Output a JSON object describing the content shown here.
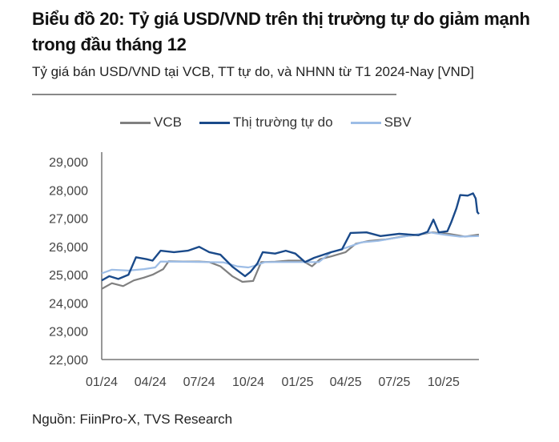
{
  "header": {
    "title": "Biểu đồ 20: Tỷ giá USD/VND trên thị trường tự do giảm mạnh trong đầu tháng 12",
    "subtitle": "Tỷ giá bán USD/VND tại VCB, TT tự do, và NHNN từ T1 2024-Nay [VND]"
  },
  "footer": {
    "source": "Nguồn: FiinPro-X, TVS Research"
  },
  "chart_data": {
    "type": "line",
    "title": "",
    "xlabel": "",
    "ylabel": "",
    "ylim": [
      22000,
      29000
    ],
    "xlim": [
      "2024-01-01",
      "2025-12-06"
    ],
    "y_ticks": [
      "22,000",
      "23,000",
      "24,000",
      "25,000",
      "26,000",
      "27,000",
      "28,000",
      "29,000"
    ],
    "y_tick_values": [
      22000,
      23000,
      24000,
      25000,
      26000,
      27000,
      28000,
      29000
    ],
    "x_ticks": [
      "01/24",
      "04/24",
      "07/24",
      "10/24",
      "01/25",
      "04/25",
      "07/25",
      "10/25"
    ],
    "x_tick_dates": [
      "2024-01-01",
      "2024-04-01",
      "2024-07-01",
      "2024-10-01",
      "2025-01-01",
      "2025-04-01",
      "2025-07-01",
      "2025-10-01"
    ],
    "grid": false,
    "legend_position": "top",
    "series": [
      {
        "name": "VCB",
        "color": "#808080",
        "points": [
          [
            "2024-01-01",
            24500
          ],
          [
            "2024-01-20",
            24700
          ],
          [
            "2024-02-10",
            24600
          ],
          [
            "2024-03-01",
            24800
          ],
          [
            "2024-03-20",
            24900
          ],
          [
            "2024-04-05",
            25000
          ],
          [
            "2024-04-25",
            25200
          ],
          [
            "2024-05-05",
            25480
          ],
          [
            "2024-06-01",
            25470
          ],
          [
            "2024-07-01",
            25470
          ],
          [
            "2024-07-20",
            25450
          ],
          [
            "2024-08-10",
            25300
          ],
          [
            "2024-09-01",
            24950
          ],
          [
            "2024-09-20",
            24750
          ],
          [
            "2024-10-10",
            24780
          ],
          [
            "2024-10-25",
            25450
          ],
          [
            "2024-11-20",
            25460
          ],
          [
            "2024-12-15",
            25500
          ],
          [
            "2025-01-10",
            25500
          ],
          [
            "2025-01-28",
            25300
          ],
          [
            "2025-02-12",
            25550
          ],
          [
            "2025-03-05",
            25650
          ],
          [
            "2025-04-01",
            25800
          ],
          [
            "2025-04-20",
            26100
          ],
          [
            "2025-05-15",
            26200
          ],
          [
            "2025-06-15",
            26250
          ],
          [
            "2025-07-15",
            26350
          ],
          [
            "2025-08-15",
            26420
          ],
          [
            "2025-09-10",
            26500
          ],
          [
            "2025-10-10",
            26450
          ],
          [
            "2025-11-10",
            26350
          ],
          [
            "2025-12-06",
            26420
          ]
        ]
      },
      {
        "name": "Thị trường tự do",
        "color": "#1a4a8a",
        "points": [
          [
            "2024-01-01",
            24800
          ],
          [
            "2024-01-15",
            24950
          ],
          [
            "2024-02-01",
            24850
          ],
          [
            "2024-02-20",
            25000
          ],
          [
            "2024-03-05",
            25620
          ],
          [
            "2024-03-25",
            25550
          ],
          [
            "2024-04-05",
            25500
          ],
          [
            "2024-04-20",
            25850
          ],
          [
            "2024-05-15",
            25800
          ],
          [
            "2024-06-10",
            25850
          ],
          [
            "2024-07-01",
            25990
          ],
          [
            "2024-07-20",
            25800
          ],
          [
            "2024-08-10",
            25710
          ],
          [
            "2024-09-01",
            25290
          ],
          [
            "2024-09-25",
            24950
          ],
          [
            "2024-10-05",
            25100
          ],
          [
            "2024-10-18",
            25400
          ],
          [
            "2024-10-28",
            25800
          ],
          [
            "2024-11-20",
            25750
          ],
          [
            "2024-12-10",
            25850
          ],
          [
            "2024-12-28",
            25750
          ],
          [
            "2025-01-15",
            25450
          ],
          [
            "2025-02-01",
            25600
          ],
          [
            "2025-03-05",
            25800
          ],
          [
            "2025-03-25",
            25900
          ],
          [
            "2025-04-10",
            26480
          ],
          [
            "2025-05-10",
            26500
          ],
          [
            "2025-06-05",
            26370
          ],
          [
            "2025-07-10",
            26450
          ],
          [
            "2025-08-15",
            26400
          ],
          [
            "2025-09-01",
            26520
          ],
          [
            "2025-09-12",
            26950
          ],
          [
            "2025-09-22",
            26500
          ],
          [
            "2025-10-08",
            26540
          ],
          [
            "2025-10-15",
            26850
          ],
          [
            "2025-10-25",
            27350
          ],
          [
            "2025-11-01",
            27820
          ],
          [
            "2025-11-15",
            27800
          ],
          [
            "2025-11-25",
            27880
          ],
          [
            "2025-11-30",
            27700
          ],
          [
            "2025-12-03",
            27220
          ],
          [
            "2025-12-06",
            27150
          ]
        ]
      },
      {
        "name": "SBV",
        "color": "#9dbde6",
        "points": [
          [
            "2024-01-01",
            25050
          ],
          [
            "2024-01-20",
            25180
          ],
          [
            "2024-02-20",
            25150
          ],
          [
            "2024-03-20",
            25200
          ],
          [
            "2024-04-10",
            25260
          ],
          [
            "2024-04-20",
            25470
          ],
          [
            "2024-06-01",
            25460
          ],
          [
            "2024-07-15",
            25450
          ],
          [
            "2024-08-15",
            25440
          ],
          [
            "2024-09-10",
            25300
          ],
          [
            "2024-10-01",
            25260
          ],
          [
            "2024-10-15",
            25330
          ],
          [
            "2024-11-01",
            25450
          ],
          [
            "2024-12-15",
            25450
          ],
          [
            "2025-02-10",
            25450
          ],
          [
            "2025-03-05",
            25800
          ],
          [
            "2025-04-01",
            25950
          ],
          [
            "2025-05-01",
            26150
          ],
          [
            "2025-06-01",
            26200
          ],
          [
            "2025-07-01",
            26300
          ],
          [
            "2025-08-10",
            26420
          ],
          [
            "2025-09-05",
            26500
          ],
          [
            "2025-10-01",
            26420
          ],
          [
            "2025-11-01",
            26350
          ],
          [
            "2025-12-06",
            26370
          ]
        ]
      }
    ]
  }
}
